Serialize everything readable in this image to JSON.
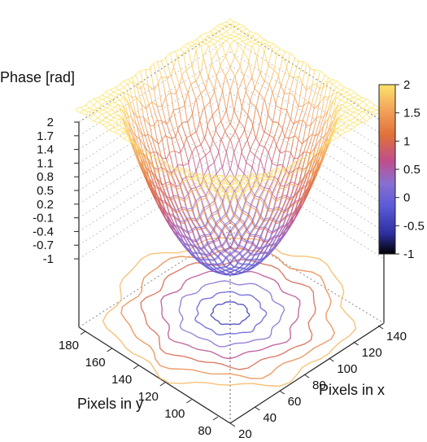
{
  "chart_data": {
    "type": "surface3d",
    "zlabel": "Phase [rad]",
    "xlabel": "Pixels in x",
    "ylabel": "Pixels in y",
    "z_ticks": [
      "2",
      "1.7",
      "1.4",
      "1.1",
      "0.8",
      "0.5",
      "0.2",
      "-0.1",
      "-0.4",
      "-0.7",
      "-1"
    ],
    "z_range": [
      -1,
      2
    ],
    "x_ticks": [
      "20",
      "40",
      "60",
      "80",
      "100",
      "120",
      "140"
    ],
    "x_range": [
      20,
      140
    ],
    "y_ticks": [
      "80",
      "100",
      "120",
      "140",
      "160",
      "180"
    ],
    "y_range": [
      80,
      180
    ],
    "colorbar_ticks": [
      "2",
      "1.5",
      "1",
      "0.5",
      "0",
      "-0.5",
      "-1"
    ],
    "colorbar_range": [
      -1,
      2
    ],
    "colormap": [
      "#000000",
      "#2d2fa0",
      "#5a5ad8",
      "#8a6fd0",
      "#c04e8c",
      "#e0703a",
      "#f3a25a",
      "#fde36a"
    ],
    "surface": {
      "description_values": "bowl-shaped phase surface",
      "z_min": -1,
      "z_max": 2,
      "center_x": 80,
      "center_y": 130
    },
    "contours_on_base": true,
    "grid": true
  }
}
